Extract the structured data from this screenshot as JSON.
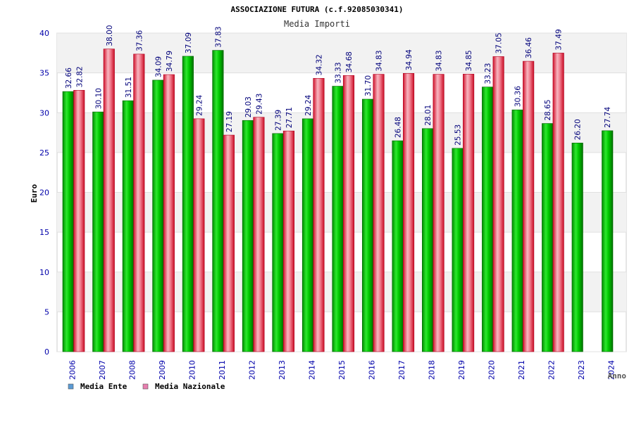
{
  "chart_data": {
    "type": "bar",
    "title": "ASSOCIAZIONE FUTURA (c.f.92085030341)",
    "subtitle": "Media Importi",
    "xlabel": "Anno",
    "ylabel": "Euro",
    "ylim": [
      0,
      40
    ],
    "yticks": [
      "0",
      "5",
      "10",
      "15",
      "20",
      "25",
      "30",
      "35",
      "40"
    ],
    "grid": "horizontal bands",
    "legend_position": "bottom-left",
    "categories": [
      "2006",
      "2007",
      "2008",
      "2009",
      "2010",
      "2011",
      "2012",
      "2013",
      "2014",
      "2015",
      "2016",
      "2017",
      "2018",
      "2019",
      "2020",
      "2021",
      "2022",
      "2023",
      "2024"
    ],
    "series": [
      {
        "name": "Media Ente",
        "color": "#00b000",
        "values": [
          32.66,
          30.1,
          31.51,
          34.09,
          37.09,
          37.83,
          29.03,
          27.39,
          29.24,
          33.33,
          31.7,
          26.48,
          28.01,
          25.53,
          33.23,
          30.36,
          28.65,
          26.2,
          27.74
        ],
        "labels": [
          "32.66",
          "30.10",
          "31.51",
          "34.09",
          "37.09",
          "37.83",
          "29.03",
          "27.39",
          "29.24",
          "33.33",
          "31.70",
          "26.48",
          "28.01",
          "25.53",
          "33.23",
          "30.36",
          "28.65",
          "26.20",
          "27.74"
        ]
      },
      {
        "name": "Media Nazionale",
        "color": "#e8283c",
        "values": [
          32.82,
          38.0,
          37.36,
          34.79,
          29.24,
          27.19,
          29.43,
          27.71,
          34.32,
          34.68,
          34.83,
          34.94,
          34.83,
          34.85,
          37.05,
          36.46,
          37.49,
          null,
          null
        ],
        "labels": [
          "32.82",
          "38.00",
          "37.36",
          "34.79",
          "29.24",
          "27.19",
          "29.43",
          "27.71",
          "34.32",
          "34.68",
          "34.83",
          "34.94",
          "34.83",
          "34.85",
          "37.05",
          "36.46",
          "37.49",
          null,
          null
        ]
      }
    ],
    "legend": [
      {
        "label": "Media Ente",
        "swatch": "#5b9bd5"
      },
      {
        "label": "Media Nazionale",
        "swatch": "#e87fb0"
      }
    ]
  }
}
